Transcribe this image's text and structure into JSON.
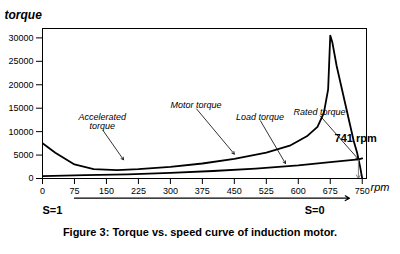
{
  "chart_data": {
    "type": "line",
    "title": "Figure 3: Torque vs. speed curve of induction motor.",
    "xlabel": "rpm",
    "ylabel": "torque",
    "xlim": [
      0,
      760
    ],
    "ylim": [
      0,
      32000
    ],
    "xticks": [
      0,
      75,
      150,
      225,
      300,
      375,
      450,
      525,
      600,
      675,
      750
    ],
    "yticks": [
      0,
      5000,
      10000,
      15000,
      20000,
      25000,
      30000
    ],
    "grid": false,
    "series": [
      {
        "color": "black",
        "x": [
          0,
          30,
          75,
          120,
          175,
          225,
          300,
          375,
          450,
          525,
          580,
          620,
          645,
          660,
          670,
          675,
          680,
          690,
          700,
          710,
          720,
          730,
          738,
          741,
          745,
          748,
          750
        ],
        "values": [
          7500,
          5500,
          3000,
          2000,
          1800,
          2000,
          2500,
          3200,
          4200,
          5500,
          7000,
          9000,
          11000,
          14000,
          19000,
          30500,
          29000,
          24000,
          20000,
          16000,
          12000,
          8000,
          5500,
          4200,
          2500,
          1000,
          0
        ]
      },
      {
        "color": "black",
        "x": [
          0,
          100,
          200,
          300,
          400,
          500,
          600,
          675,
          741,
          750
        ],
        "values": [
          500,
          700,
          900,
          1200,
          1600,
          2100,
          2800,
          3500,
          4100,
          4300
        ]
      }
    ],
    "reference_lines": [
      {
        "x": 741,
        "y_from": 4100,
        "y_to": 0,
        "color": "gray"
      }
    ],
    "annotations": [
      {
        "text": "Motor torque",
        "x": 360,
        "y": 15000,
        "arrow_to": [
          450,
          5200
        ]
      },
      {
        "text": "Load torque",
        "x": 510,
        "y": 12500,
        "arrow_to": [
          570,
          3200
        ]
      },
      {
        "text": "Accelerated\ntorque",
        "x": 140,
        "y": 10500,
        "arrow_to": [
          190,
          4000
        ]
      },
      {
        "text": "Rated torque",
        "x": 650,
        "y": 13500,
        "arrow_to": [
          741,
          4100
        ]
      },
      {
        "text": "741 rpm",
        "x": 685,
        "y": 9500
      },
      {
        "text": "S=1",
        "x": 0,
        "y": -5800
      },
      {
        "text": "S=0",
        "x": 615,
        "y": -5800
      }
    ],
    "arrows": [
      {
        "from": [
          75,
          -4200
        ],
        "to": [
          720,
          -4200
        ]
      }
    ]
  }
}
